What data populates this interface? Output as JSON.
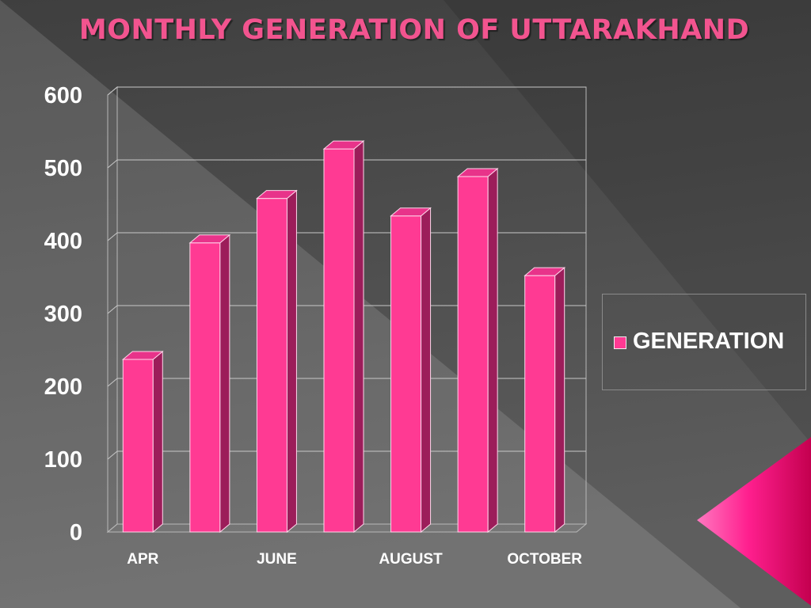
{
  "slide": {
    "title": "MONTHLY GENERATION OF UTTARAKHAND",
    "colors": {
      "background": "#4a4a4a",
      "accent": "#ff3a93",
      "title": "#f2548f"
    }
  },
  "chart_data": {
    "type": "bar",
    "title": "MONTHLY GENERATION OF UTTARAKHAND",
    "xlabel": "",
    "ylabel": "",
    "categories": [
      "APR",
      "",
      "JUNE",
      "",
      "AUGUST",
      "",
      "OCTOBER"
    ],
    "series": [
      {
        "name": "GENERATION",
        "values": [
          237,
          397,
          458,
          526,
          434,
          488,
          352
        ],
        "color": "#ff3a93"
      }
    ],
    "ylim": [
      0,
      600
    ],
    "yticks": [
      0,
      100,
      200,
      300,
      400,
      500,
      600
    ],
    "grid": true,
    "legend": "right"
  }
}
